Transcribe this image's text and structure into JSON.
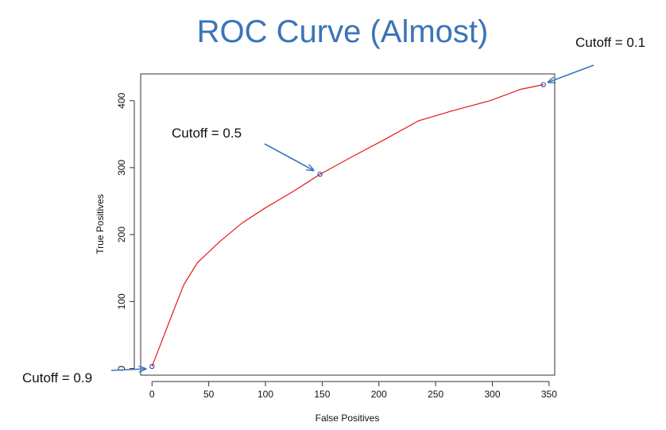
{
  "chart_data": {
    "type": "line",
    "title": "ROC Curve (Almost)",
    "xlabel": "False Positives",
    "ylabel": "True Positives",
    "xlim": [
      -10,
      355
    ],
    "ylim": [
      -10,
      440
    ],
    "x_ticks": [
      0,
      50,
      100,
      150,
      200,
      250,
      300,
      350
    ],
    "y_ticks": [
      0,
      100,
      200,
      300,
      400
    ],
    "line_color": "#e8151b",
    "marker_color": "#2f3ab0",
    "arrow_color": "#3b74b8",
    "series": [
      {
        "x": [
          0,
          8,
          18,
          28,
          40,
          60,
          80,
          100,
          125,
          148,
          175,
          205,
          235,
          265,
          298,
          325,
          345
        ],
        "y": [
          3,
          38,
          82,
          125,
          158,
          190,
          218,
          240,
          265,
          290,
          315,
          342,
          370,
          385,
          400,
          417,
          424
        ]
      }
    ],
    "markers": [
      {
        "x": 0,
        "y": 3
      },
      {
        "x": 148,
        "y": 290
      },
      {
        "x": 345,
        "y": 424
      }
    ],
    "annotations": [
      {
        "text": "Cutoff = 0.9",
        "x": 0,
        "y": 3
      },
      {
        "text": "Cutoff = 0.5",
        "x": 148,
        "y": 290
      },
      {
        "text": "Cutoff = 0.1",
        "x": 345,
        "y": 424
      }
    ]
  }
}
